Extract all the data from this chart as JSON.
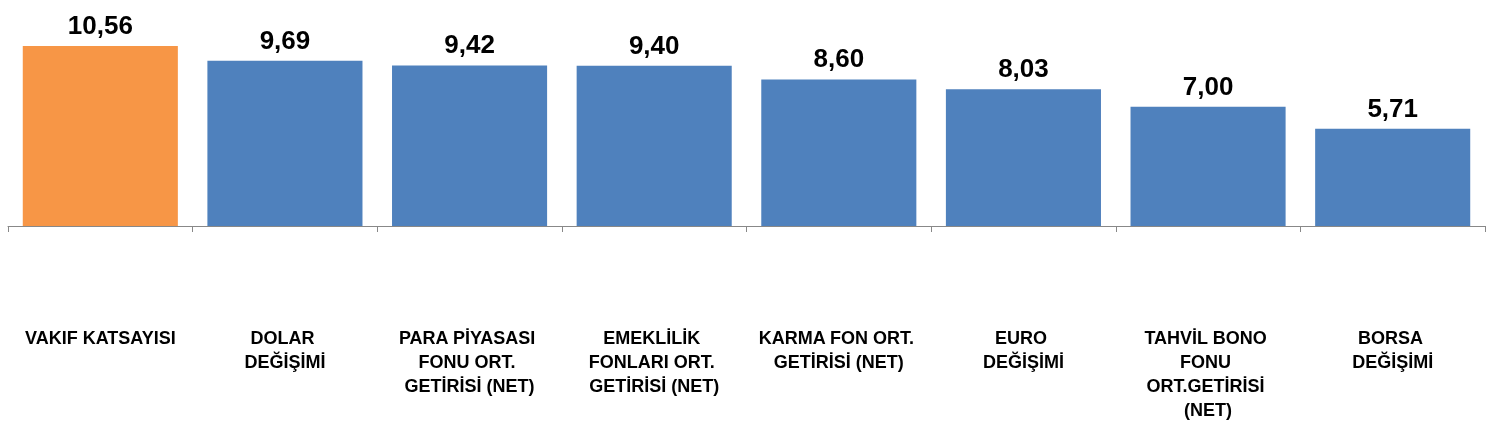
{
  "chart_data": {
    "type": "bar",
    "categories": [
      "VAKIF KATSAYISI",
      "DOLAR DEĞİŞİMİ",
      "PARA PİYASASI FONU ORT. GETİRİSİ (NET)",
      "EMEKLİLİK FONLARI ORT. GETİRİSİ (NET)",
      "KARMA FON ORT. GETİRİSİ (NET)",
      "EURO DEĞİŞİMİ",
      "TAHVİL BONO FONU ORT.GETİRİSİ (NET)",
      "BORSA DEĞİŞİMİ"
    ],
    "values": [
      10.56,
      9.69,
      9.42,
      9.4,
      8.6,
      8.03,
      7.0,
      5.71
    ],
    "colors": [
      "#f79646",
      "#4f81bd",
      "#4f81bd",
      "#4f81bd",
      "#4f81bd",
      "#4f81bd",
      "#4f81bd",
      "#4f81bd"
    ],
    "value_labels": [
      "10,56",
      "9,69",
      "9,42",
      "9,40",
      "8,60",
      "8,03",
      "7,00",
      "5,71"
    ]
  }
}
